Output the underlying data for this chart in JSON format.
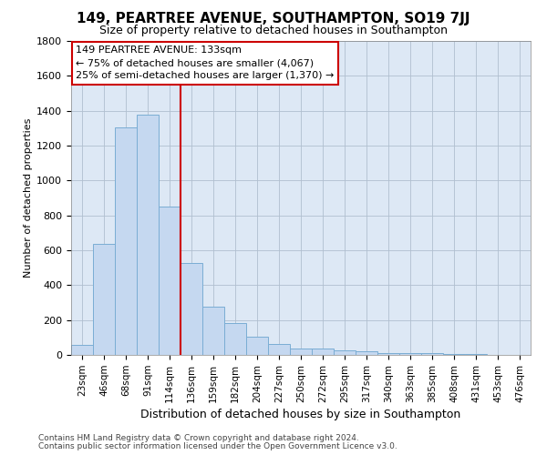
{
  "title": "149, PEARTREE AVENUE, SOUTHAMPTON, SO19 7JJ",
  "subtitle": "Size of property relative to detached houses in Southampton",
  "xlabel": "Distribution of detached houses by size in Southampton",
  "ylabel": "Number of detached properties",
  "footnote1": "Contains HM Land Registry data © Crown copyright and database right 2024.",
  "footnote2": "Contains public sector information licensed under the Open Government Licence v3.0.",
  "annotation_line1": "149 PEARTREE AVENUE: 133sqm",
  "annotation_line2": "← 75% of detached houses are smaller (4,067)",
  "annotation_line3": "25% of semi-detached houses are larger (1,370) →",
  "bar_color": "#c5d8f0",
  "bar_edge_color": "#7aadd4",
  "vline_color": "#cc0000",
  "background_color": "#dde8f5",
  "fig_background": "#ffffff",
  "grid_color": "#b0bfcf",
  "categories": [
    "23sqm",
    "46sqm",
    "68sqm",
    "91sqm",
    "114sqm",
    "136sqm",
    "159sqm",
    "182sqm",
    "204sqm",
    "227sqm",
    "250sqm",
    "272sqm",
    "295sqm",
    "317sqm",
    "340sqm",
    "363sqm",
    "385sqm",
    "408sqm",
    "431sqm",
    "453sqm",
    "476sqm"
  ],
  "values": [
    55,
    635,
    1305,
    1380,
    848,
    525,
    278,
    183,
    105,
    65,
    38,
    35,
    28,
    20,
    10,
    8,
    8,
    5,
    4,
    0,
    0
  ],
  "vline_index": 5,
  "ylim": [
    0,
    1800
  ],
  "yticks": [
    0,
    200,
    400,
    600,
    800,
    1000,
    1200,
    1400,
    1600,
    1800
  ],
  "figsize": [
    6.0,
    5.0
  ],
  "dpi": 100,
  "title_fontsize": 11,
  "subtitle_fontsize": 9,
  "xlabel_fontsize": 9,
  "ylabel_fontsize": 8,
  "tick_fontsize": 8,
  "xtick_fontsize": 7.5,
  "annot_fontsize": 8,
  "footnote_fontsize": 6.5
}
